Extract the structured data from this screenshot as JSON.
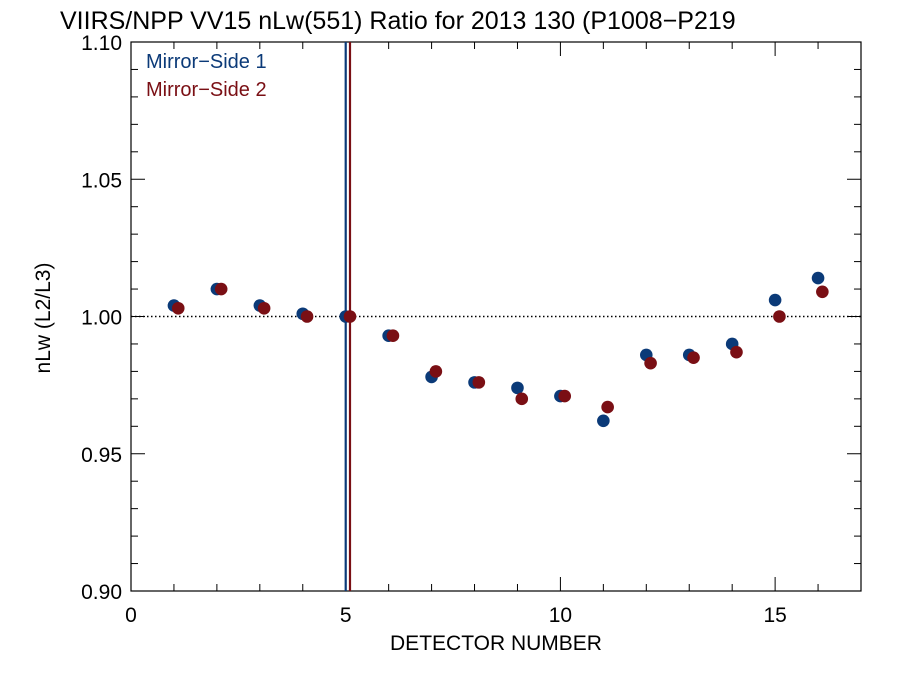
{
  "chart_data": {
    "type": "scatter",
    "title": "VIIRS/NPP VV15 nLw(551) Ratio for 2013 130 (P1008−P219",
    "xlabel": "DETECTOR NUMBER",
    "ylabel": "nLw (L2/L3)",
    "xlim": [
      0,
      17
    ],
    "ylim": [
      0.9,
      1.1
    ],
    "xticks": [
      0,
      5,
      10,
      15
    ],
    "xtick_labels": [
      "0",
      "5",
      "10",
      "15"
    ],
    "yticks": [
      0.9,
      0.95,
      1.0,
      1.05,
      1.1
    ],
    "ytick_labels": [
      "0.90",
      "0.95",
      "1.00",
      "1.05",
      "1.10"
    ],
    "reference_line": 1.0,
    "vertical_lines": [
      {
        "series": "Mirror−Side 1",
        "x": 5.0
      },
      {
        "series": "Mirror−Side 2",
        "x": 5.1
      }
    ],
    "legend_position": "top-left",
    "series": [
      {
        "name": "Mirror−Side 1",
        "color": "#0b3a78",
        "x": [
          1,
          2,
          3,
          4,
          5,
          6,
          7,
          8,
          9,
          10,
          11,
          12,
          13,
          14,
          15,
          16
        ],
        "y": [
          1.004,
          1.01,
          1.004,
          1.001,
          1.0,
          0.993,
          0.978,
          0.976,
          0.974,
          0.971,
          0.962,
          0.986,
          0.986,
          0.99,
          1.006,
          1.014
        ]
      },
      {
        "name": "Mirror−Side 2",
        "color": "#7a0f14",
        "x": [
          1.1,
          2.1,
          3.1,
          4.1,
          5.1,
          6.1,
          7.1,
          8.1,
          9.1,
          10.1,
          11.1,
          12.1,
          13.1,
          14.1,
          15.1,
          16.1
        ],
        "y": [
          1.003,
          1.01,
          1.003,
          1.0,
          1.0,
          0.993,
          0.98,
          0.976,
          0.97,
          0.971,
          0.967,
          0.983,
          0.985,
          0.987,
          1.0,
          1.009
        ]
      }
    ]
  }
}
